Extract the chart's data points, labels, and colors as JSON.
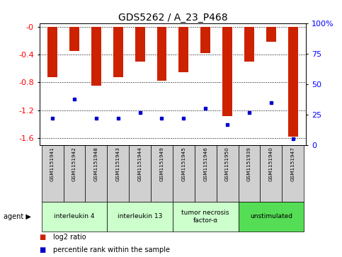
{
  "title": "GDS5262 / A_23_P468",
  "samples": [
    "GSM1151941",
    "GSM1151942",
    "GSM1151948",
    "GSM1151943",
    "GSM1151944",
    "GSM1151949",
    "GSM1151945",
    "GSM1151946",
    "GSM1151950",
    "GSM1151939",
    "GSM1151940",
    "GSM1151947"
  ],
  "log2_ratio": [
    -0.72,
    -0.35,
    -0.85,
    -0.72,
    -0.5,
    -0.78,
    -0.65,
    -0.38,
    -1.28,
    -0.5,
    -0.22,
    -1.58
  ],
  "percentile_rank": [
    22,
    38,
    22,
    22,
    27,
    22,
    22,
    30,
    17,
    27,
    35,
    5
  ],
  "groups": [
    {
      "label": "interleukin 4",
      "fc": "#ccffcc",
      "indices": [
        0,
        1,
        2
      ]
    },
    {
      "label": "interleukin 13",
      "fc": "#ccffcc",
      "indices": [
        3,
        4,
        5
      ]
    },
    {
      "label": "tumor necrosis\nfactor-α",
      "fc": "#ccffcc",
      "indices": [
        6,
        7,
        8
      ]
    },
    {
      "label": "unstimulated",
      "fc": "#55dd55",
      "indices": [
        9,
        10,
        11
      ]
    }
  ],
  "ylim_left": [
    -1.7,
    0.05
  ],
  "ylim_right": [
    0,
    100
  ],
  "yticks_left": [
    -1.6,
    -1.2,
    -0.8,
    -0.4,
    0.0
  ],
  "ytick_labels_left": [
    "-1.6",
    "-1.2",
    "-0.8",
    "-0.4",
    "-0"
  ],
  "yticks_right": [
    0,
    25,
    50,
    75,
    100
  ],
  "ytick_labels_right": [
    "0",
    "25",
    "50",
    "75",
    "100%"
  ],
  "bar_color": "#cc2200",
  "dot_color": "#0000cc",
  "legend_items": [
    {
      "color": "#cc2200",
      "label": "log2 ratio"
    },
    {
      "color": "#0000cc",
      "label": "percentile rank within the sample"
    }
  ]
}
